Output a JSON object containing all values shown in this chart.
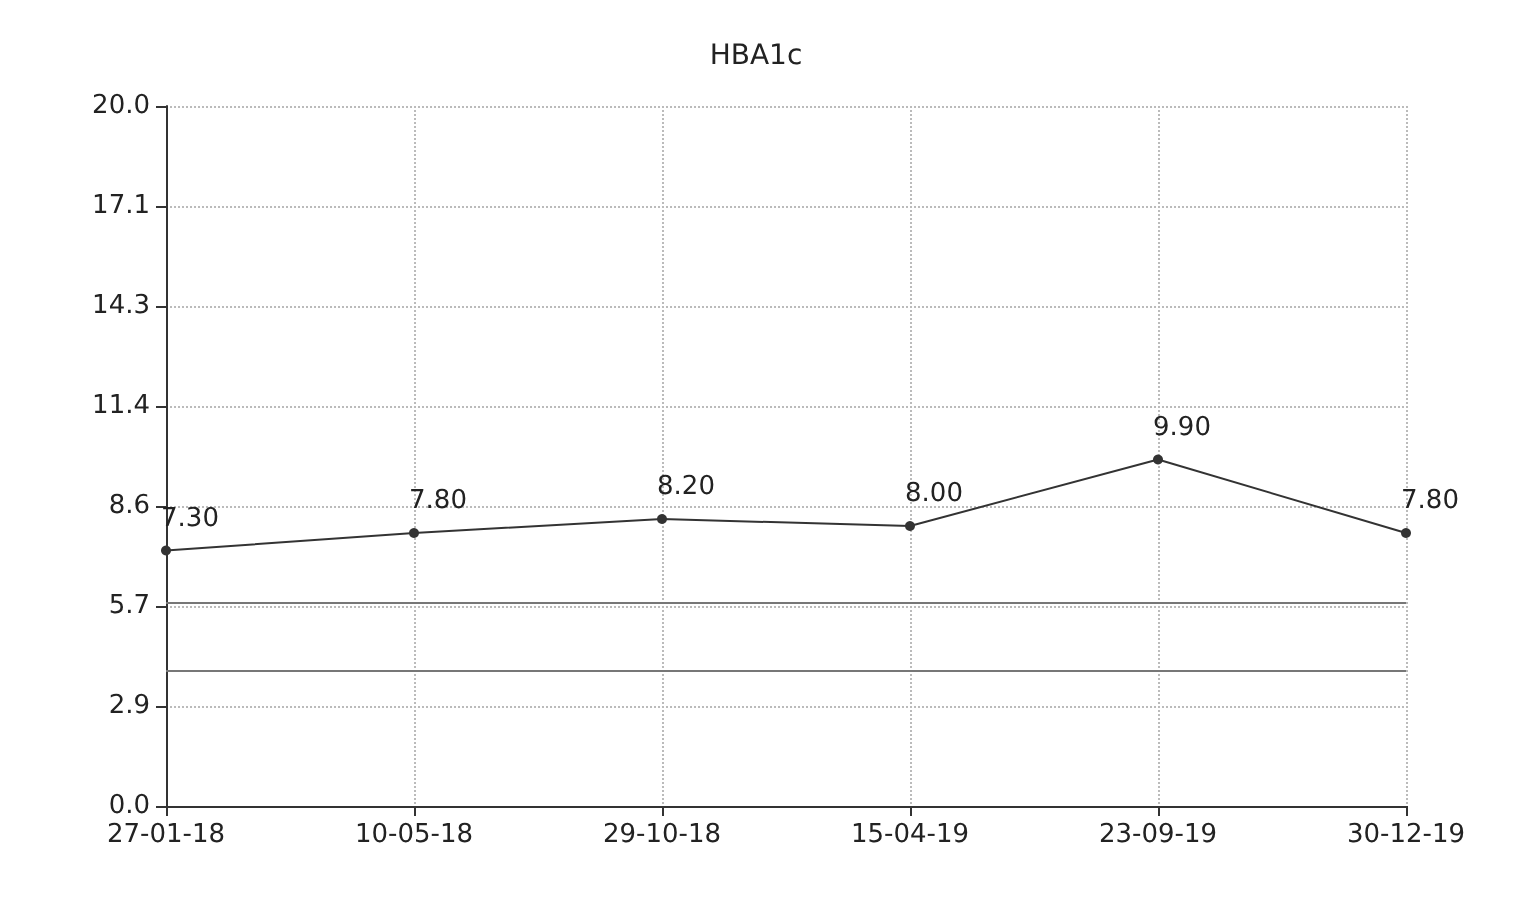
{
  "chart_data": {
    "type": "line",
    "title": "HBA1c",
    "categories": [
      "27-01-18",
      "10-05-18",
      "29-10-18",
      "15-04-19",
      "23-09-19",
      "30-12-19"
    ],
    "series": [
      {
        "color": "#333333",
        "values": [
          7.3,
          7.8,
          8.2,
          8.0,
          9.9,
          7.8
        ],
        "value_labels": [
          "7.30",
          "7.80",
          "8.20",
          "8.00",
          "9.90",
          "7.80"
        ]
      }
    ],
    "ylim": [
      0,
      20
    ],
    "yticks": [
      {
        "value": 0,
        "label": "0.0"
      },
      {
        "value": 2.86,
        "label": "2.9"
      },
      {
        "value": 5.71,
        "label": "5.7"
      },
      {
        "value": 8.57,
        "label": "8.6"
      },
      {
        "value": 11.43,
        "label": "11.4"
      },
      {
        "value": 14.29,
        "label": "14.3"
      },
      {
        "value": 17.14,
        "label": "17.1"
      },
      {
        "value": 20,
        "label": "20.0"
      }
    ],
    "ref_lines": [
      {
        "axis": "y",
        "value": 5.8,
        "label": null,
        "color": "#777777"
      },
      {
        "axis": "y",
        "value": 3.9,
        "label": null,
        "color": "#777777"
      }
    ],
    "grid": true,
    "marker": "circle",
    "line_style": "solid"
  }
}
